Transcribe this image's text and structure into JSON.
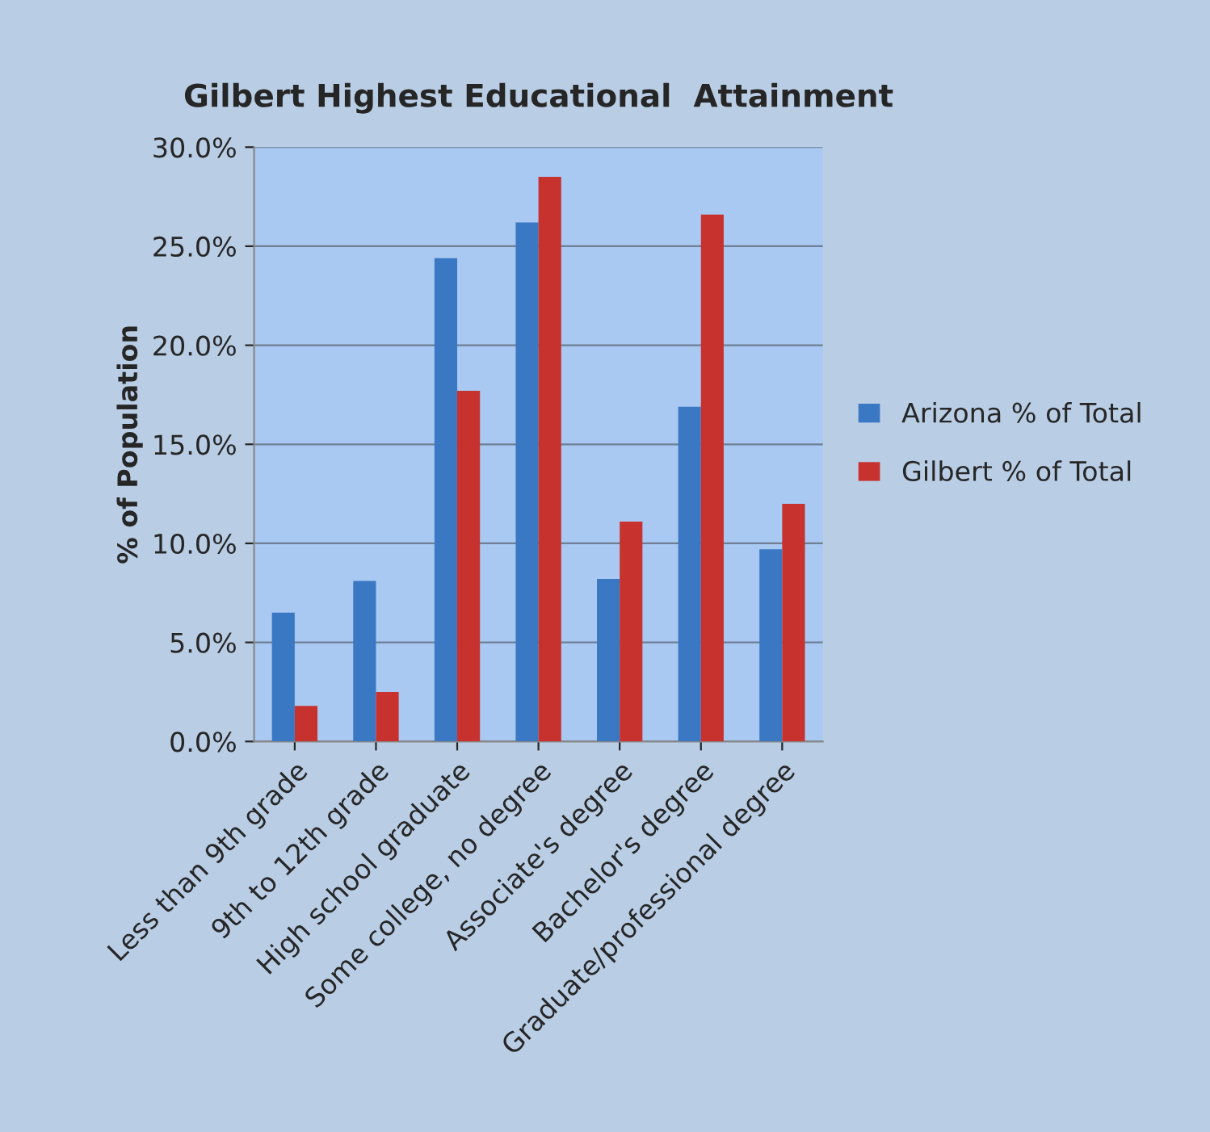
{
  "chart_data": {
    "type": "bar",
    "title": "Gilbert Highest Educational  Attainment",
    "ylabel": "% of Population",
    "categories": [
      "Less than 9th grade",
      "9th to 12th grade",
      "High school graduate",
      "Some college, no degree",
      "Associate's degree",
      "Bachelor's degree",
      "Graduate/professional degree"
    ],
    "series": [
      {
        "name": "Arizona % of Total",
        "color": "#3a78c4",
        "values": [
          6.5,
          8.1,
          24.4,
          26.2,
          8.2,
          16.9,
          9.7
        ]
      },
      {
        "name": "Gilbert % of Total",
        "color": "#c8322e",
        "values": [
          1.8,
          2.5,
          17.7,
          28.5,
          11.1,
          26.6,
          12.0
        ]
      }
    ],
    "ylim": [
      0,
      30
    ],
    "yticks": [
      {
        "value": 0,
        "label": "0.0%"
      },
      {
        "value": 5,
        "label": "5.0%"
      },
      {
        "value": 10,
        "label": "10.0%"
      },
      {
        "value": 15,
        "label": "15.0%"
      },
      {
        "value": 20,
        "label": "20.0%"
      },
      {
        "value": 25,
        "label": "25.0%"
      },
      {
        "value": 30,
        "label": "30.0%"
      }
    ],
    "grid": "y",
    "legend": "right"
  }
}
